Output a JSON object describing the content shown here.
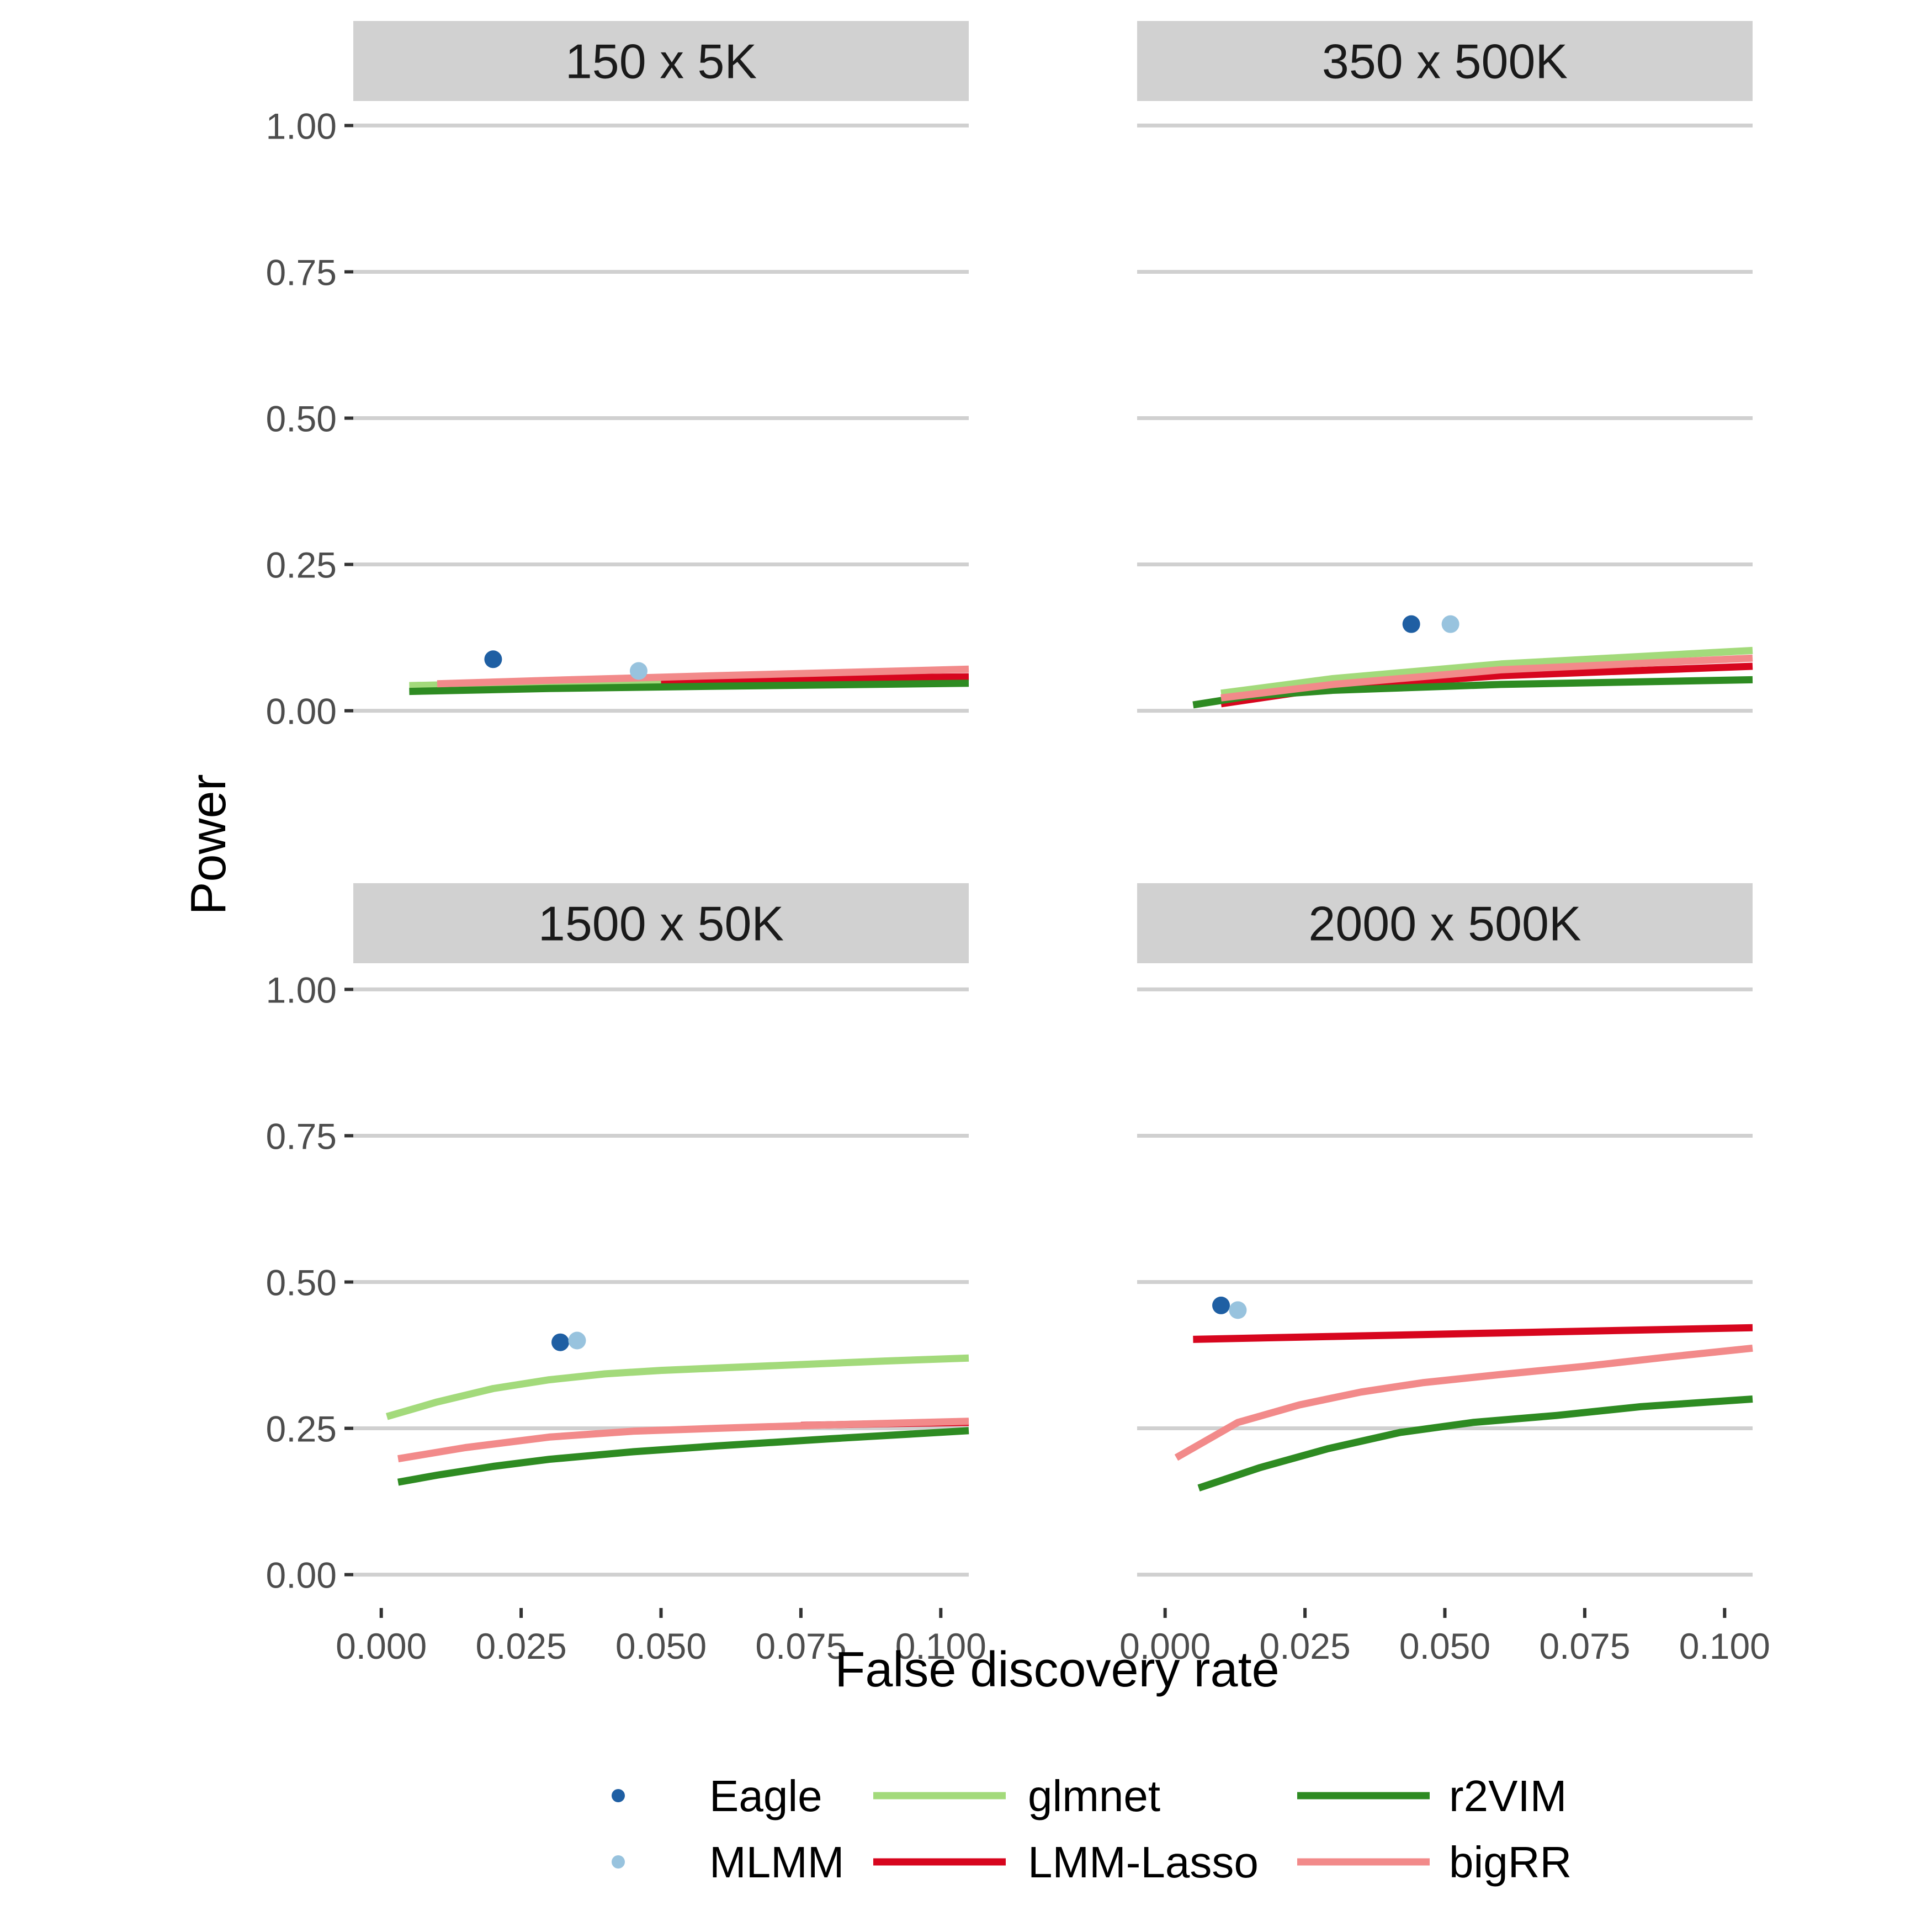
{
  "chart_data": {
    "type": "line",
    "xlabel": "False discovery rate",
    "ylabel": "Power",
    "xlim": [
      -0.005,
      0.105
    ],
    "ylim": [
      -0.04,
      1.04
    ],
    "x_ticks": [
      "0.000",
      "0.025",
      "0.050",
      "0.075",
      "0.100"
    ],
    "x_tick_values": [
      0.0,
      0.025,
      0.05,
      0.075,
      0.1
    ],
    "y_ticks": [
      "0.00",
      "0.25",
      "0.50",
      "0.75",
      "1.00"
    ],
    "y_tick_values": [
      0.0,
      0.25,
      0.5,
      0.75,
      1.0
    ],
    "grid": "horizontal",
    "legend_position": "bottom",
    "legend": [
      {
        "name": "Eagle",
        "kind": "point",
        "color": "#1F5FA3"
      },
      {
        "name": "MLMM",
        "kind": "point",
        "color": "#98C3DE"
      },
      {
        "name": "glmnet",
        "kind": "line",
        "color": "#A3DA7B"
      },
      {
        "name": "LMM-Lasso",
        "kind": "line",
        "color": "#D7061E"
      },
      {
        "name": "r2VIM",
        "kind": "line",
        "color": "#2E8B22"
      },
      {
        "name": "bigRR",
        "kind": "line",
        "color": "#F28A8A"
      }
    ],
    "panels": [
      {
        "title": "150 x 5K",
        "lines": [
          {
            "name": "glmnet",
            "points": [
              [
                0.005,
                0.043
              ],
              [
                0.03,
                0.048
              ],
              [
                0.06,
                0.052
              ],
              [
                0.105,
                0.056
              ]
            ]
          },
          {
            "name": "LMM-Lasso",
            "points": [
              [
                0.05,
                0.05
              ],
              [
                0.08,
                0.055
              ],
              [
                0.105,
                0.058
              ]
            ]
          },
          {
            "name": "r2VIM",
            "points": [
              [
                0.005,
                0.033
              ],
              [
                0.03,
                0.038
              ],
              [
                0.06,
                0.042
              ],
              [
                0.105,
                0.047
              ]
            ]
          },
          {
            "name": "bigRR",
            "points": [
              [
                0.01,
                0.046
              ],
              [
                0.03,
                0.052
              ],
              [
                0.06,
                0.06
              ],
              [
                0.105,
                0.071
              ]
            ]
          }
        ],
        "points": [
          {
            "name": "Eagle",
            "x": 0.02,
            "y": 0.088
          },
          {
            "name": "MLMM",
            "x": 0.046,
            "y": 0.068
          }
        ]
      },
      {
        "title": "350 x 500K",
        "lines": [
          {
            "name": "glmnet",
            "points": [
              [
                0.01,
                0.03
              ],
              [
                0.03,
                0.055
              ],
              [
                0.06,
                0.08
              ],
              [
                0.105,
                0.103
              ]
            ]
          },
          {
            "name": "LMM-Lasso",
            "points": [
              [
                0.01,
                0.012
              ],
              [
                0.03,
                0.04
              ],
              [
                0.06,
                0.06
              ],
              [
                0.105,
                0.076
              ]
            ]
          },
          {
            "name": "r2VIM",
            "points": [
              [
                0.005,
                0.01
              ],
              [
                0.015,
                0.025
              ],
              [
                0.03,
                0.035
              ],
              [
                0.06,
                0.045
              ],
              [
                0.105,
                0.053
              ]
            ]
          },
          {
            "name": "bigRR",
            "points": [
              [
                0.01,
                0.022
              ],
              [
                0.03,
                0.045
              ],
              [
                0.06,
                0.07
              ],
              [
                0.105,
                0.09
              ]
            ]
          }
        ],
        "points": [
          {
            "name": "Eagle",
            "x": 0.044,
            "y": 0.148
          },
          {
            "name": "MLMM",
            "x": 0.051,
            "y": 0.148
          }
        ]
      },
      {
        "title": "1500 x 50K",
        "lines": [
          {
            "name": "glmnet",
            "points": [
              [
                0.001,
                0.27
              ],
              [
                0.01,
                0.295
              ],
              [
                0.02,
                0.318
              ],
              [
                0.03,
                0.333
              ],
              [
                0.04,
                0.343
              ],
              [
                0.05,
                0.349
              ],
              [
                0.07,
                0.357
              ],
              [
                0.09,
                0.365
              ],
              [
                0.105,
                0.37
              ]
            ]
          },
          {
            "name": "LMM-Lasso",
            "points": [
              [
                0.075,
                0.255
              ],
              [
                0.09,
                0.258
              ],
              [
                0.105,
                0.26
              ]
            ]
          },
          {
            "name": "r2VIM",
            "points": [
              [
                0.003,
                0.158
              ],
              [
                0.01,
                0.17
              ],
              [
                0.02,
                0.185
              ],
              [
                0.03,
                0.197
              ],
              [
                0.045,
                0.21
              ],
              [
                0.06,
                0.22
              ],
              [
                0.08,
                0.232
              ],
              [
                0.105,
                0.246
              ]
            ]
          },
          {
            "name": "bigRR",
            "points": [
              [
                0.003,
                0.198
              ],
              [
                0.015,
                0.217
              ],
              [
                0.03,
                0.235
              ],
              [
                0.045,
                0.245
              ],
              [
                0.06,
                0.25
              ],
              [
                0.08,
                0.256
              ],
              [
                0.105,
                0.262
              ]
            ]
          }
        ],
        "points": [
          {
            "name": "Eagle",
            "x": 0.032,
            "y": 0.397
          },
          {
            "name": "MLMM",
            "x": 0.035,
            "y": 0.4
          }
        ]
      },
      {
        "title": "2000 x 500K",
        "lines": [
          {
            "name": "LMM-Lasso",
            "points": [
              [
                0.005,
                0.402
              ],
              [
                0.03,
                0.407
              ],
              [
                0.06,
                0.413
              ],
              [
                0.105,
                0.422
              ]
            ]
          },
          {
            "name": "r2VIM",
            "points": [
              [
                0.006,
                0.148
              ],
              [
                0.017,
                0.183
              ],
              [
                0.029,
                0.215
              ],
              [
                0.042,
                0.243
              ],
              [
                0.055,
                0.26
              ],
              [
                0.07,
                0.272
              ],
              [
                0.085,
                0.287
              ],
              [
                0.105,
                0.3
              ]
            ]
          },
          {
            "name": "bigRR",
            "points": [
              [
                0.002,
                0.2
              ],
              [
                0.013,
                0.26
              ],
              [
                0.024,
                0.29
              ],
              [
                0.035,
                0.312
              ],
              [
                0.046,
                0.328
              ],
              [
                0.06,
                0.342
              ],
              [
                0.075,
                0.356
              ],
              [
                0.09,
                0.372
              ],
              [
                0.105,
                0.387
              ]
            ]
          }
        ],
        "points": [
          {
            "name": "Eagle",
            "x": 0.01,
            "y": 0.46
          },
          {
            "name": "MLMM",
            "x": 0.013,
            "y": 0.452
          }
        ]
      }
    ]
  }
}
